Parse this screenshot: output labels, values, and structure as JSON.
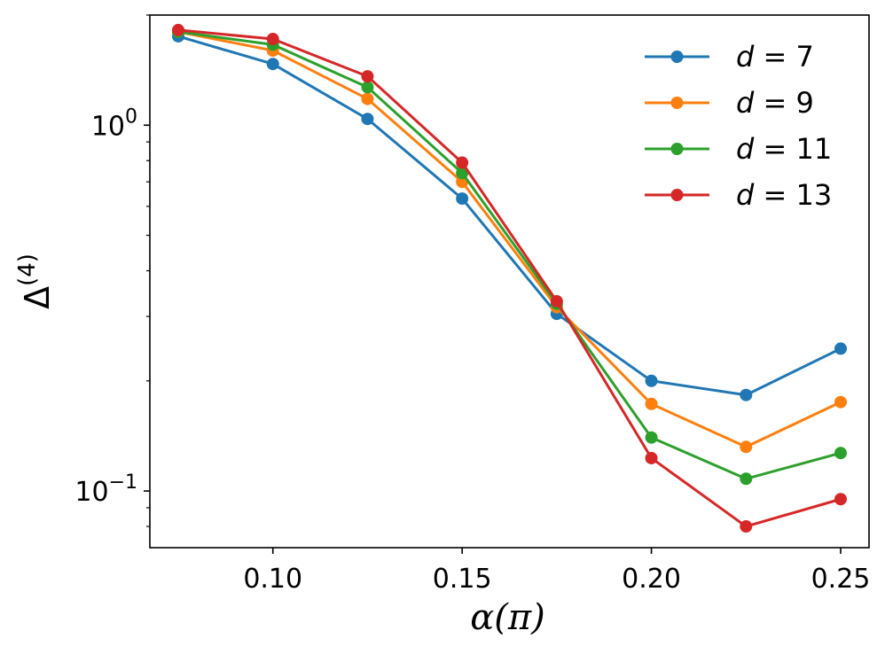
{
  "chart_data": {
    "type": "line",
    "title": "",
    "xlabel": "α(π)",
    "ylabel_base": "Δ",
    "ylabel_sup": "(4)",
    "yscale": "log",
    "xlim": [
      0.0675,
      0.2575
    ],
    "ylim": [
      0.07,
      2.0
    ],
    "x": [
      0.075,
      0.1,
      0.125,
      0.15,
      0.175,
      0.2,
      0.225,
      0.25
    ],
    "x_ticks": [
      0.1,
      0.15,
      0.2,
      0.25
    ],
    "x_tick_labels": [
      "0.10",
      "0.15",
      "0.20",
      "0.25"
    ],
    "y_major_ticks": [
      {
        "value": 1.0,
        "base": "10",
        "exp": "0"
      },
      {
        "value": 0.1,
        "base": "10",
        "exp": "−1"
      }
    ],
    "y_minor_ticks": [
      0.08,
      0.09,
      0.2,
      0.3,
      0.4,
      0.5,
      0.6,
      0.7,
      0.8,
      0.9,
      2.0
    ],
    "grid": false,
    "legend_position": "top-right",
    "series": [
      {
        "name": "d = 7",
        "var": "d",
        "val": "7",
        "color": "#1f77b4",
        "values": [
          1.75,
          1.47,
          1.04,
          0.63,
          0.305,
          0.2,
          0.183,
          0.245
        ]
      },
      {
        "name": "d = 9",
        "var": "d",
        "val": "9",
        "color": "#ff7f0e",
        "values": [
          1.8,
          1.6,
          1.18,
          0.7,
          0.318,
          0.173,
          0.132,
          0.175
        ]
      },
      {
        "name": "d = 11",
        "var": "d",
        "val": "11",
        "color": "#2ca02c",
        "values": [
          1.8,
          1.66,
          1.27,
          0.74,
          0.325,
          0.14,
          0.108,
          0.127
        ]
      },
      {
        "name": "d = 13",
        "var": "d",
        "val": "13",
        "color": "#d62728",
        "values": [
          1.82,
          1.72,
          1.36,
          0.79,
          0.33,
          0.123,
          0.08,
          0.095
        ]
      }
    ]
  }
}
